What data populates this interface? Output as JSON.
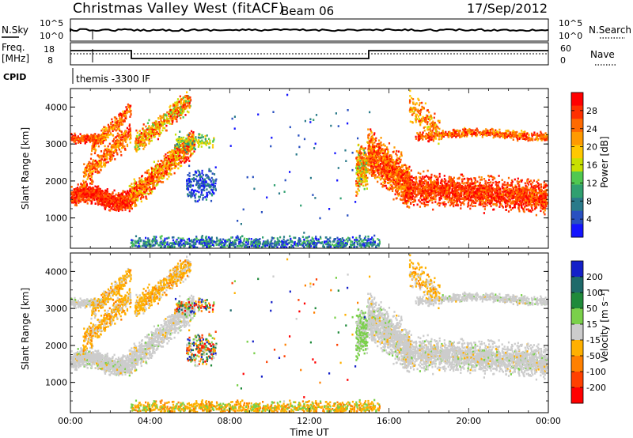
{
  "header": {
    "station": "Christmas Valley West (fitACF)",
    "beam": "Beam 06",
    "date": "17/Sep/2012"
  },
  "top_panels": {
    "nsky_label": "N.Sky",
    "nsearch_label": "N.Search",
    "freq_label_1": "Freq.",
    "freq_label_2": "[MHz]",
    "nave_label": "Nave",
    "cpid_label": "CPID",
    "noise_ticks": [
      "10^5",
      "10^0"
    ],
    "freq_ticks": [
      "18",
      "8"
    ],
    "nave_ticks": [
      "60",
      "0"
    ],
    "cpid_text": "themis -3300 IF"
  },
  "chart_data": [
    {
      "type": "heatmap",
      "title": "",
      "ylabel": "Slant Range [km]",
      "xlabel": "",
      "colorbar_label": "Power [dB]",
      "colorbar_ticks": [
        "28",
        "24",
        "20",
        "16",
        "12",
        "8",
        "4"
      ],
      "colorbar_colors": [
        "#ff0000",
        "#ff3000",
        "#ff6a00",
        "#ff9a00",
        "#ffc800",
        "#c8e000",
        "#50c850",
        "#30a070",
        "#2a7a8a",
        "#2850c0",
        "#1414ff"
      ],
      "yticks": [
        "4000",
        "3000",
        "2000",
        "1000"
      ],
      "ylim": [
        180,
        4500
      ],
      "xlim": [
        "00:00",
        "24:00"
      ]
    },
    {
      "type": "heatmap",
      "title": "",
      "ylabel": "Slant Range [km]",
      "xlabel": "Time UT",
      "colorbar_label": "Velocity [m s⁻¹]",
      "colorbar_ticks": [
        "200",
        "100",
        "50",
        "15",
        "-15",
        "-50",
        "-100",
        "-200"
      ],
      "colorbar_colors": [
        "#1420c8",
        "#1f6a6a",
        "#1f8a3a",
        "#7ad04a",
        "#cccccc",
        "#ffb000",
        "#ff8000",
        "#ff4000",
        "#ff0000"
      ],
      "yticks": [
        "4000",
        "3000",
        "2000",
        "1000"
      ],
      "xticks": [
        "00:00",
        "04:00",
        "08:00",
        "12:00",
        "16:00",
        "20:00",
        "00:00"
      ],
      "ylim": [
        180,
        4500
      ],
      "xlim": [
        "00:00",
        "24:00"
      ]
    }
  ]
}
